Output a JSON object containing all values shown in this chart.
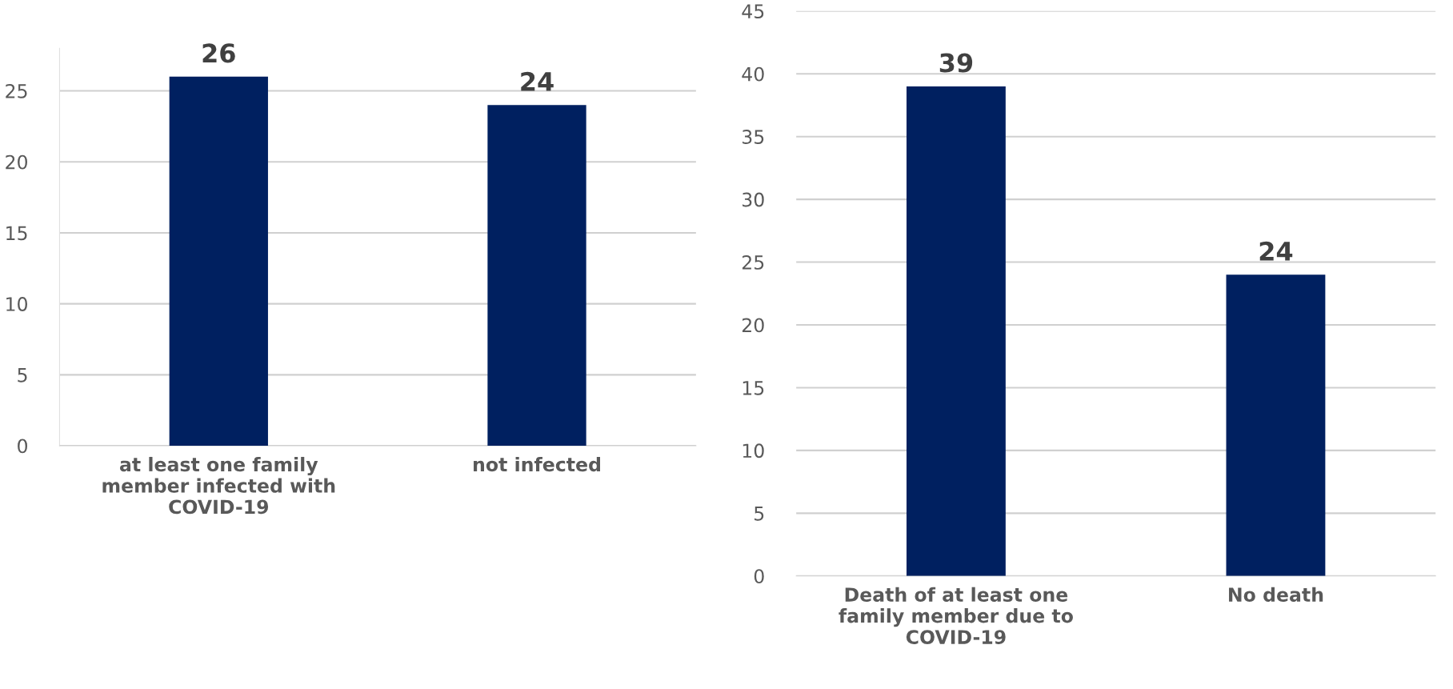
{
  "chart_data": [
    {
      "type": "bar",
      "categories": [
        "at least one family\nmember infected with\nCOVID-19",
        "not infected"
      ],
      "values": [
        26,
        24
      ],
      "color": "#002060",
      "ylim": [
        0,
        28
      ],
      "yticks": [
        0,
        5,
        10,
        15,
        20,
        25
      ],
      "grid": "y",
      "data_labels": true
    },
    {
      "type": "bar",
      "categories": [
        "Death of at least one\nfamily member due to\nCOVID-19",
        "No death"
      ],
      "values": [
        39,
        24
      ],
      "color": "#002060",
      "ylim": [
        0,
        45
      ],
      "yticks": [
        0,
        5,
        10,
        15,
        20,
        25,
        30,
        35,
        40,
        45
      ],
      "grid": "y",
      "data_labels": true
    }
  ]
}
